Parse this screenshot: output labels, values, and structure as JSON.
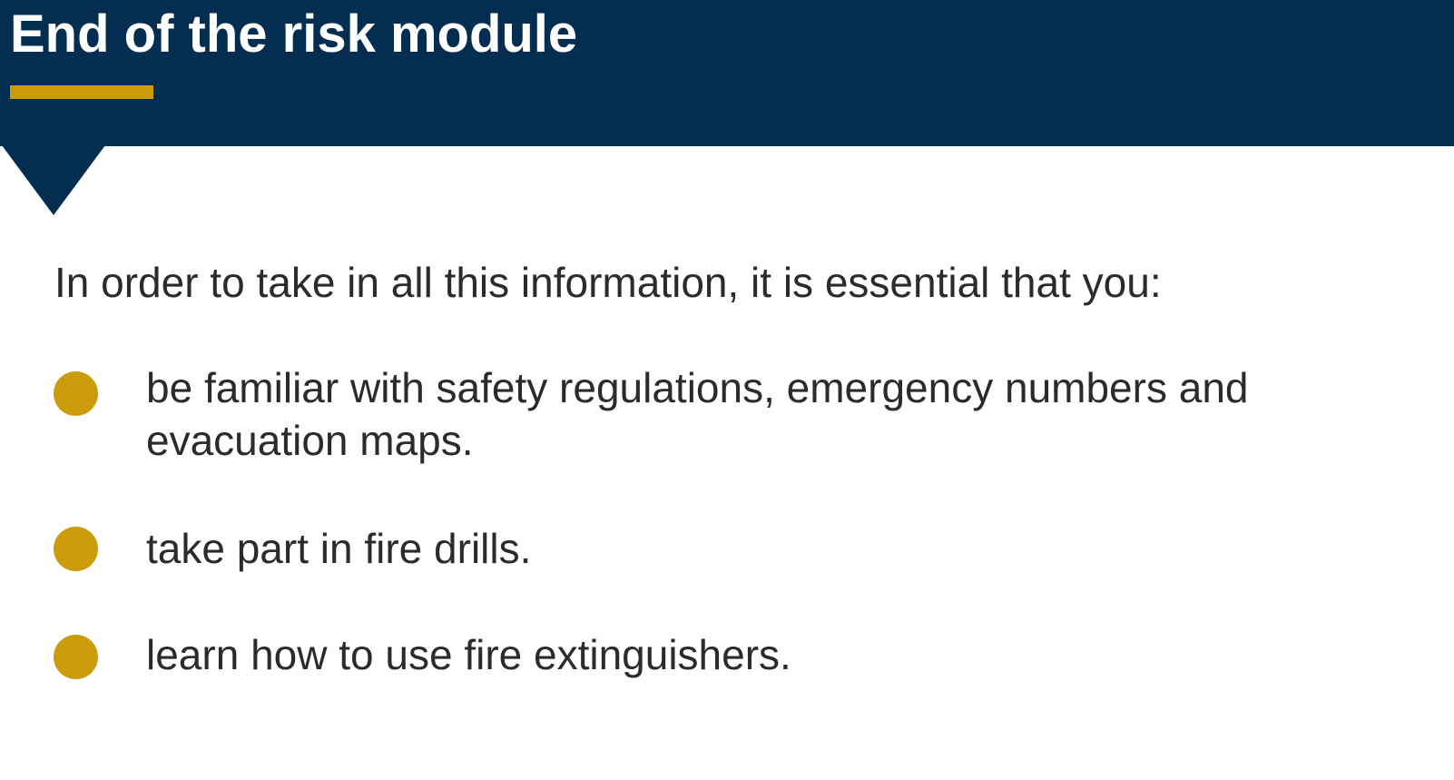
{
  "slide": {
    "title": "End of the risk module",
    "intro": "In order to take in all this information, it is essential that you:",
    "bullets": [
      {
        "text": "be familiar with safety regulations, emergency numbers and evacuation maps."
      },
      {
        "text": "take part in fire drills."
      },
      {
        "text": "learn how to use fire extinguishers."
      }
    ]
  },
  "colors": {
    "header_background": "#032e52",
    "accent": "#cc9b0a",
    "body_text": "#2b2b2b",
    "title_text": "#ffffff"
  }
}
